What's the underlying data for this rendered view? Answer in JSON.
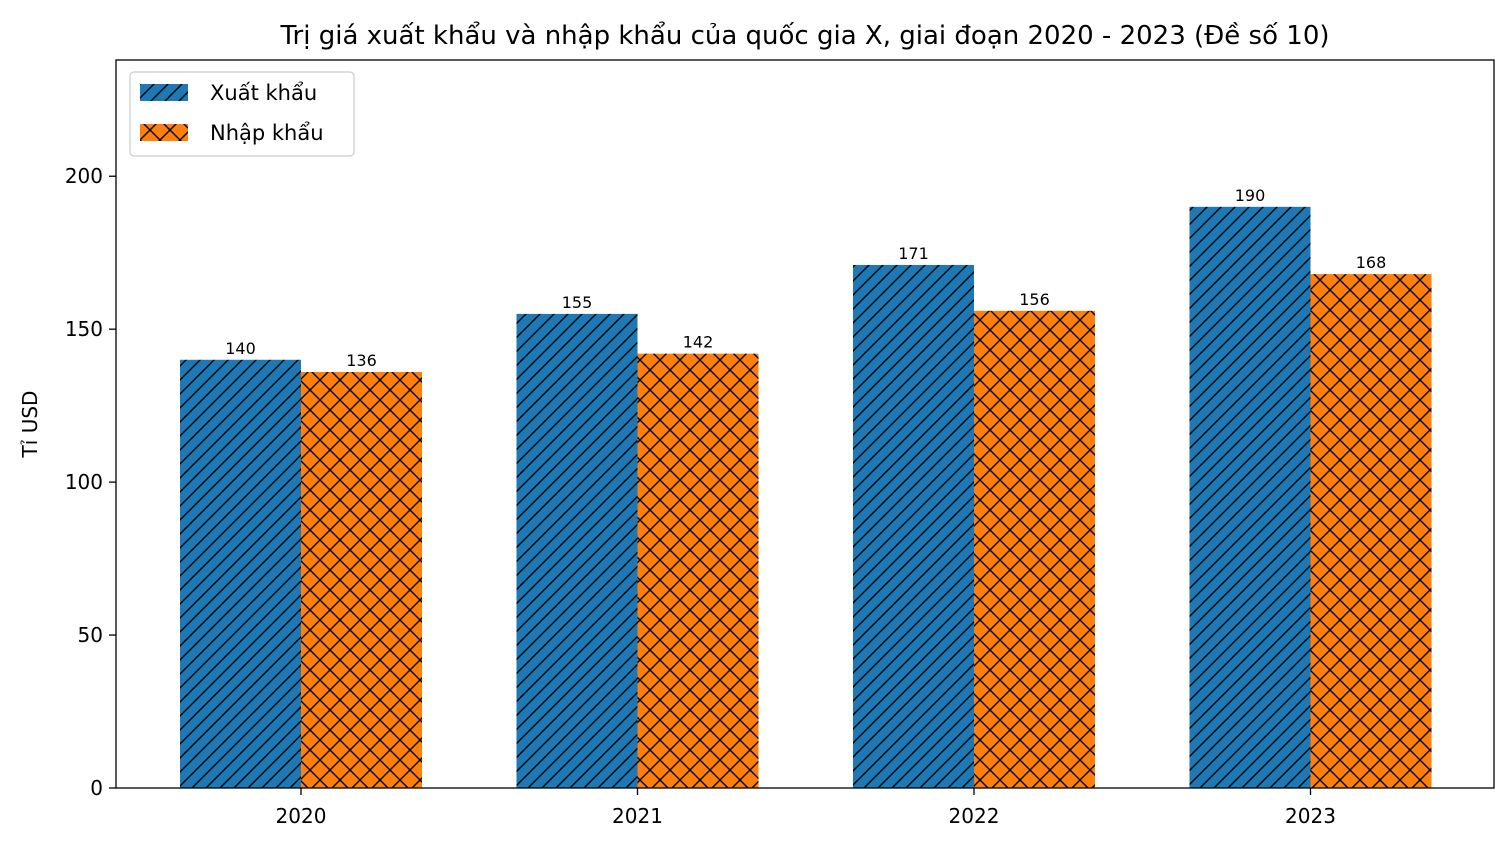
{
  "chart_data": {
    "type": "bar",
    "title": "Trị giá xuất khẩu và nhập khẩu của quốc gia X, giai đoạn 2020 - 2023 (Đề số 10)",
    "xlabel": "",
    "ylabel": "Tỉ USD",
    "categories": [
      "2020",
      "2021",
      "2022",
      "2023"
    ],
    "series": [
      {
        "name": "Xuất khẩu",
        "values": [
          140,
          155,
          171,
          190
        ],
        "color": "#1f77b4",
        "hatch": "diagonal"
      },
      {
        "name": "Nhập khẩu",
        "values": [
          136,
          142,
          156,
          168
        ],
        "color": "#ff7f0e",
        "hatch": "crosshatch"
      }
    ],
    "ylim": [
      0,
      238
    ],
    "yticks": [
      0,
      50,
      100,
      150,
      200
    ],
    "grid": false,
    "legend_position": "top-left",
    "data_labels": true
  }
}
